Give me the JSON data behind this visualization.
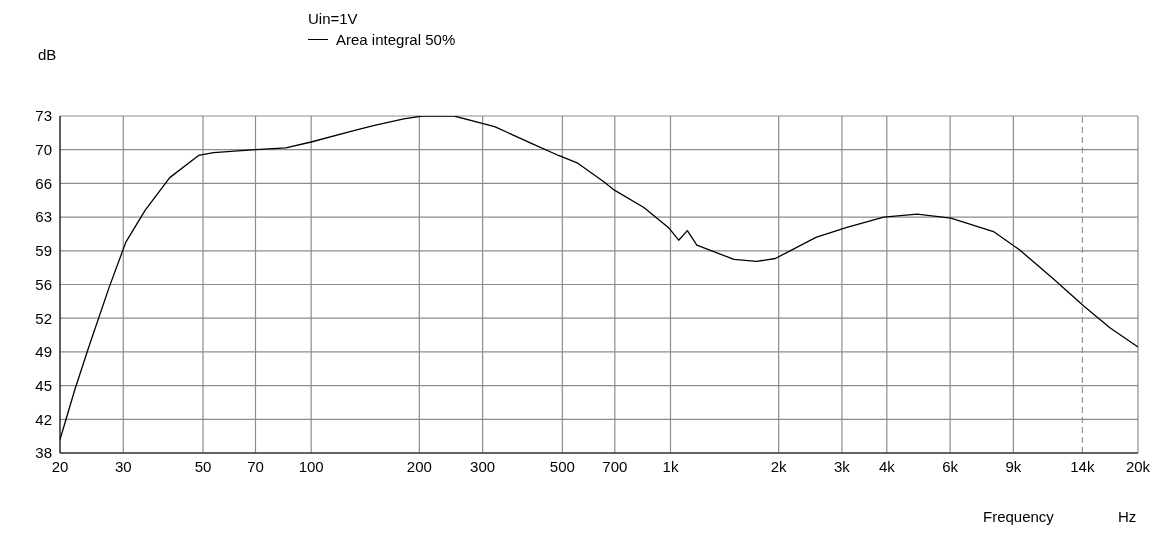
{
  "chart_data": {
    "type": "line",
    "xlabel": "Frequency",
    "ylabel": "dB",
    "legend_title": "Uin=1V",
    "annotations": [
      "Hz"
    ],
    "log": "x",
    "grid": true,
    "legend": "top",
    "marker": "none",
    "line_style": "solid",
    "xlim": [
      20,
      20000
    ],
    "ylim": [
      38,
      73
    ],
    "xticks": [
      20,
      30,
      50,
      70,
      100,
      200,
      300,
      500,
      700,
      {
        "value": 1000,
        "label": "1k"
      },
      {
        "value": 2000,
        "label": "2k"
      },
      {
        "value": 3000,
        "label": "3k"
      },
      {
        "value": 4000,
        "label": "4k"
      },
      {
        "value": 6000,
        "label": "6k"
      },
      {
        "value": 9000,
        "label": "9k"
      },
      {
        "value": 14000,
        "label": "14k"
      },
      {
        "value": 20000,
        "label": "20k"
      }
    ],
    "yticks": [
      38,
      {
        "value": 41.5,
        "label": "42"
      },
      45,
      {
        "value": 48.5,
        "label": "49"
      },
      52,
      {
        "value": 55.5,
        "label": "56"
      },
      59,
      {
        "value": 62.5,
        "label": "63"
      },
      66,
      {
        "value": 69.5,
        "label": "70"
      },
      73
    ],
    "ref_lines": [
      {
        "axis": "x",
        "value": 14000,
        "line_style": "dashed",
        "color": "#808080"
      }
    ],
    "series": [
      {
        "name": "Area integral 50%",
        "color": "#000000",
        "x": [
          20,
          22,
          24,
          27.4,
          30.5,
          34.5,
          40.4,
          48.6,
          53.5,
          70,
          85,
          100,
          129,
          149,
          181,
          204,
          250,
          324,
          413,
          488,
          552,
          651,
          698,
          843,
          988,
          1054,
          1114,
          1184,
          1502,
          1735,
          1958,
          2540,
          3080,
          3920,
          4860,
          6030,
          7920,
          9360,
          11620,
          14100,
          16700,
          20000
        ],
        "values": [
          39.4,
          44.6,
          48.9,
          55.2,
          59.9,
          63.2,
          66.6,
          68.9,
          69.2,
          69.5,
          69.7,
          70.3,
          71.4,
          72,
          72.7,
          73,
          73,
          71.9,
          70.1,
          68.9,
          68.1,
          66.2,
          65.3,
          63.5,
          61.4,
          60.1,
          61.1,
          59.6,
          58.1,
          57.9,
          58.2,
          60.4,
          61.4,
          62.5,
          62.8,
          62.4,
          61,
          59.1,
          56.1,
          53.3,
          51,
          49
        ]
      }
    ]
  }
}
